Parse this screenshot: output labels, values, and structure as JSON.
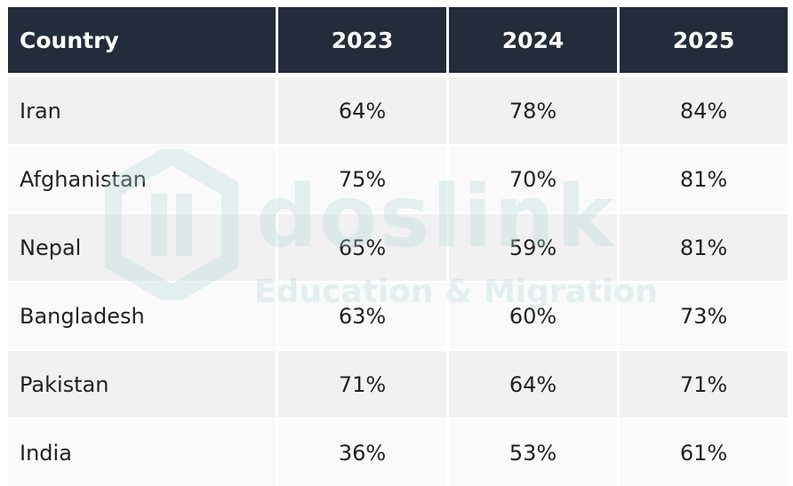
{
  "table": {
    "headers": [
      "Country",
      "2023",
      "2024",
      "2025"
    ],
    "rows": [
      [
        "Iran",
        "64%",
        "78%",
        "84%"
      ],
      [
        "Afghanistan",
        "75%",
        "70%",
        "81%"
      ],
      [
        "Nepal",
        "65%",
        "59%",
        "81%"
      ],
      [
        "Bangladesh",
        "63%",
        "60%",
        "73%"
      ],
      [
        "Pakistan",
        "71%",
        "64%",
        "71%"
      ],
      [
        "India",
        "36%",
        "53%",
        "61%"
      ]
    ]
  },
  "watermark": {
    "brand": "doslink",
    "tagline": "Education & Migration"
  },
  "colors": {
    "header_bg": "#232c3a",
    "header_text": "#ffffff",
    "row_odd": "#f1f1f1",
    "row_even": "#fafafa",
    "watermark": "#b0d6d4"
  }
}
